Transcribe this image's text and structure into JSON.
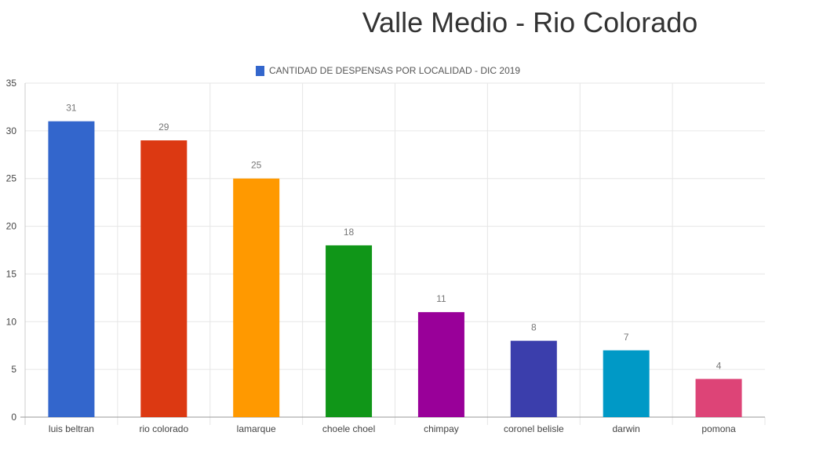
{
  "chart_data": {
    "type": "bar",
    "title": "Valle Medio - Rio Colorado",
    "legend": {
      "label": "CANTIDAD DE DESPENSAS POR LOCALIDAD - DIC 2019",
      "color": "#3366cc",
      "position": "top-center"
    },
    "categories": [
      "luis beltran",
      "rio colorado",
      "lamarque",
      "choele choel",
      "chimpay",
      "coronel belisle",
      "darwin",
      "pomona"
    ],
    "series": [
      {
        "name": "CANTIDAD DE DESPENSAS POR LOCALIDAD - DIC 2019",
        "values": [
          31,
          29,
          25,
          18,
          11,
          8,
          7,
          4
        ]
      }
    ],
    "bar_colors": [
      "#3366cc",
      "#dc3912",
      "#ff9900",
      "#109618",
      "#990099",
      "#3b3eac",
      "#0099c6",
      "#dd4477"
    ],
    "data_labels": true,
    "ylim": [
      0,
      35
    ],
    "yticks": [
      0,
      5,
      10,
      15,
      20,
      25,
      30,
      35
    ],
    "grid": true,
    "xlabel": "",
    "ylabel": ""
  }
}
